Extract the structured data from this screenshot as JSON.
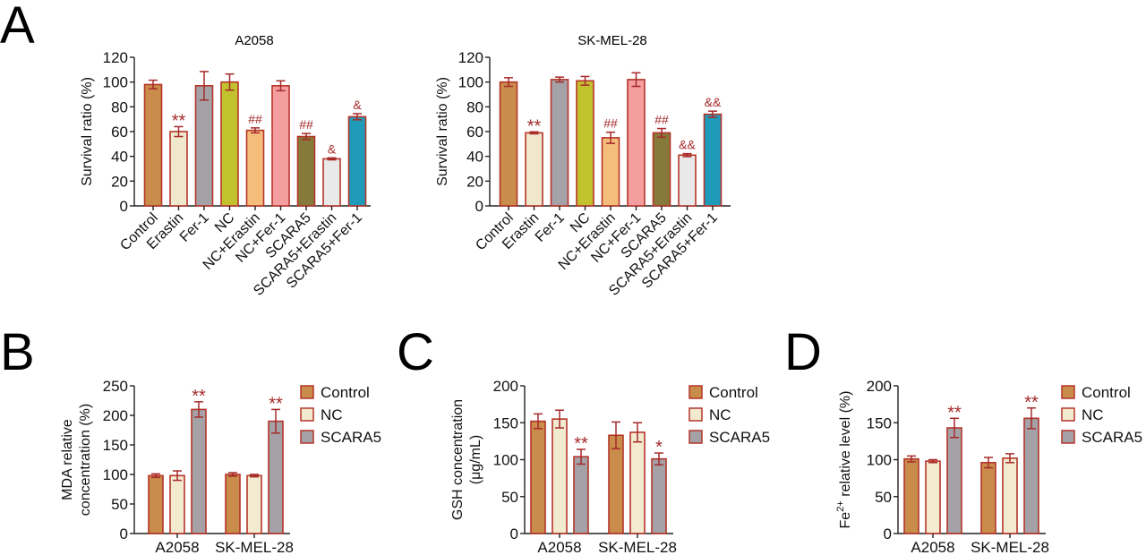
{
  "figure": {
    "panel_letters": [
      "A",
      "B",
      "C",
      "D"
    ]
  },
  "colors": {
    "outline": "#b5352a",
    "error": "#a52a2a",
    "significance": "#a52a2a",
    "Control": "#c98c4a",
    "Erastin": "#efe8cc",
    "Fer-1": "#a4a2a6",
    "NC": "#c2c12e",
    "NC+Erastin": "#f5bd7c",
    "NC+Fer-1": "#f49ea0",
    "SCARA5": "#857a3a",
    "SCARA5+Erastin": "#e9e9e9",
    "SCARA5+Fer-1": "#1f9ab9",
    "legend_Control": "#c98c4a",
    "legend_NC": "#f3ebd0",
    "legend_SCARA5": "#a4a2a6"
  },
  "chart_data": [
    {
      "id": "A-left",
      "panel": "A",
      "type": "bar",
      "title": "A2058",
      "xlabel": "",
      "ylabel": "Survival ratio (%)",
      "ylim": [
        0,
        120
      ],
      "yticks": [
        0,
        20,
        40,
        60,
        80,
        100,
        120
      ],
      "grid": false,
      "categories": [
        "Control",
        "Erastin",
        "Fer-1",
        "NC",
        "NC+Erastin",
        "NC+Fer-1",
        "SCARA5",
        "SCARA5+Erastin",
        "SCARA5+Fer-1"
      ],
      "values": [
        98,
        60,
        97,
        100,
        61,
        97,
        56,
        38,
        72
      ],
      "errors": [
        3.5,
        4,
        11.5,
        6.5,
        2,
        4,
        2.5,
        0.8,
        2.5
      ],
      "annotations": [
        "",
        "**",
        "",
        "",
        "##",
        "",
        "##",
        "&",
        "&"
      ]
    },
    {
      "id": "A-right",
      "panel": "A",
      "type": "bar",
      "title": "SK-MEL-28",
      "xlabel": "",
      "ylabel": "Survival ratio (%)",
      "ylim": [
        0,
        120
      ],
      "yticks": [
        0,
        20,
        40,
        60,
        80,
        100,
        120
      ],
      "grid": false,
      "categories": [
        "Control",
        "Erastin",
        "Fer-1",
        "NC",
        "NC+Erastin",
        "NC+Fer-1",
        "SCARA5",
        "SCARA5+Erastin",
        "SCARA5+Fer-1"
      ],
      "values": [
        100,
        59,
        102,
        101,
        55,
        102,
        59,
        41,
        74
      ],
      "errors": [
        3.5,
        0.8,
        2,
        3.5,
        4.5,
        5.5,
        3.5,
        1.2,
        2.5
      ],
      "annotations": [
        "",
        "**",
        "",
        "",
        "##",
        "",
        "##",
        "&&",
        "&&"
      ]
    },
    {
      "id": "B",
      "panel": "B",
      "type": "bar",
      "title": "",
      "xlabel": "",
      "ylabel": "MDA relative concentration (%)",
      "ylabel_lines": [
        "MDA relative",
        "concentration (%)"
      ],
      "ylim": [
        0,
        250
      ],
      "yticks": [
        0,
        50,
        100,
        150,
        200,
        250
      ],
      "grid": false,
      "legend_position": "right",
      "categories": [
        "A2058",
        "SK-MEL-28"
      ],
      "series": [
        {
          "name": "Control",
          "values": [
            98,
            100
          ],
          "errors": [
            3,
            3
          ]
        },
        {
          "name": "NC",
          "values": [
            98,
            98
          ],
          "errors": [
            8,
            2
          ]
        },
        {
          "name": "SCARA5",
          "values": [
            210,
            190
          ],
          "errors": [
            13,
            20
          ]
        }
      ],
      "annotations": [
        [
          "",
          "",
          "**"
        ],
        [
          "",
          "",
          "**"
        ]
      ]
    },
    {
      "id": "C",
      "panel": "C",
      "type": "bar",
      "title": "",
      "xlabel": "",
      "ylabel": "GSH concentration (μg/mL)",
      "ylabel_lines": [
        "GSH concentration",
        "(μg/mL)"
      ],
      "ylim": [
        0,
        200
      ],
      "yticks": [
        0,
        50,
        100,
        150,
        200
      ],
      "grid": false,
      "legend_position": "right",
      "categories": [
        "A2058",
        "SK-MEL-28"
      ],
      "series": [
        {
          "name": "Control",
          "values": [
            152,
            133
          ],
          "errors": [
            10,
            18
          ]
        },
        {
          "name": "NC",
          "values": [
            155,
            137
          ],
          "errors": [
            12,
            13
          ]
        },
        {
          "name": "SCARA5",
          "values": [
            104,
            101
          ],
          "errors": [
            10,
            8
          ]
        }
      ],
      "annotations": [
        [
          "",
          "",
          "**"
        ],
        [
          "",
          "",
          "*"
        ]
      ]
    },
    {
      "id": "D",
      "panel": "D",
      "type": "bar",
      "title": "",
      "xlabel": "",
      "ylabel": "Fe2+ relative level (%)",
      "ylabel_parts": {
        "base": "Fe",
        "sup": "2+",
        "rest": " relative level (%)"
      },
      "ylim": [
        0,
        200
      ],
      "yticks": [
        0,
        50,
        100,
        150,
        200
      ],
      "grid": false,
      "legend_position": "right",
      "categories": [
        "A2058",
        "SK-MEL-28"
      ],
      "series": [
        {
          "name": "Control",
          "values": [
            101,
            96
          ],
          "errors": [
            4,
            7
          ]
        },
        {
          "name": "NC",
          "values": [
            98,
            102
          ],
          "errors": [
            2,
            6
          ]
        },
        {
          "name": "SCARA5",
          "values": [
            143,
            156
          ],
          "errors": [
            13,
            14
          ]
        }
      ],
      "annotations": [
        [
          "",
          "",
          "**"
        ],
        [
          "",
          "",
          "**"
        ]
      ]
    }
  ]
}
